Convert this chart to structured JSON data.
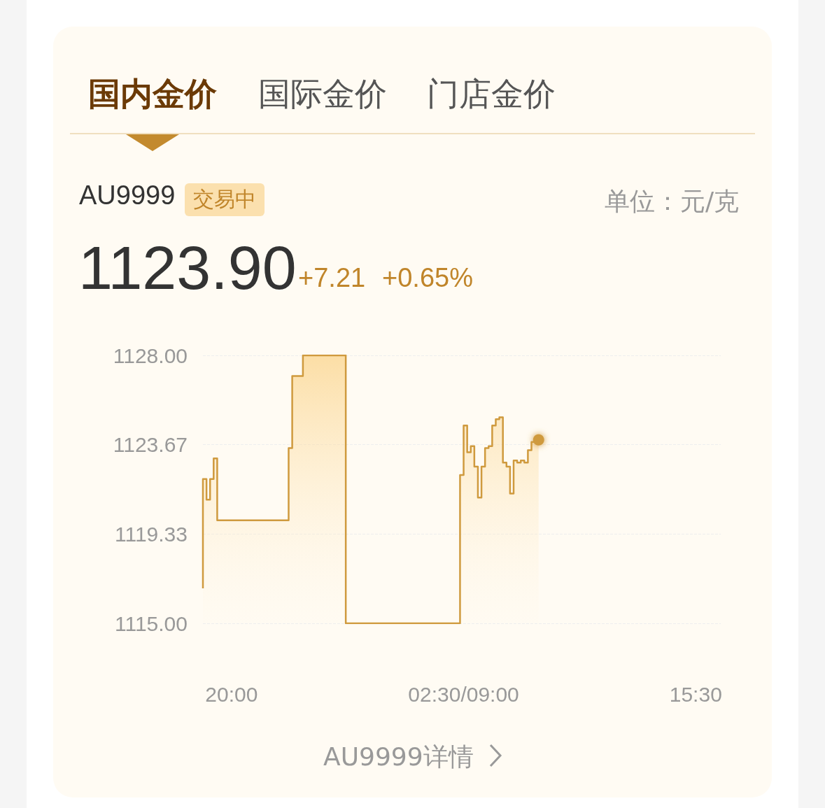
{
  "chart_data": {
    "type": "step",
    "title": "AU9999",
    "annotations": [
      "国内金价",
      "国际金价",
      "门店金价",
      "交易中",
      "1123.90",
      "+7.21",
      "+0.65%",
      "AU9999详情",
      "单位：元/克"
    ],
    "categories": [
      null,
      null,
      null,
      null,
      null,
      null,
      null,
      null,
      "20:00",
      null,
      null,
      null,
      null,
      null,
      null,
      null,
      null,
      null,
      null,
      null,
      null,
      null,
      null,
      null,
      null,
      null,
      null,
      null,
      null,
      null,
      null,
      null,
      null,
      null,
      null,
      null,
      null,
      null,
      null,
      null,
      null,
      null,
      null,
      null,
      null,
      null,
      null,
      null,
      null,
      null,
      null,
      null,
      null,
      null,
      null,
      null,
      null,
      null,
      null,
      null,
      null,
      null,
      null,
      null,
      null,
      null,
      null,
      null,
      null,
      null,
      null,
      null,
      null,
      "02:30/09:00",
      null,
      null,
      null,
      null,
      null,
      null,
      null,
      null,
      null,
      null,
      null,
      null,
      null,
      null,
      null,
      null,
      null,
      null,
      null,
      null,
      null,
      null,
      null,
      null,
      null,
      null,
      null,
      null,
      null,
      null,
      null,
      null,
      null,
      null,
      null,
      null,
      null,
      null,
      null,
      null,
      null,
      null,
      null,
      null,
      null,
      null,
      null,
      null,
      null,
      null,
      null,
      null,
      null,
      null,
      null,
      null,
      null,
      null,
      null,
      null,
      null,
      null,
      null,
      null,
      "15:30",
      null,
      null,
      null,
      null,
      null,
      null,
      null
    ],
    "values": [
      1116.7,
      1122.0,
      1121.0,
      1122.0,
      1123.0,
      1120.0,
      1120.0,
      1120.0,
      1120.0,
      1120.0,
      1120.0,
      1120.0,
      1120.0,
      1120.0,
      1120.0,
      1120.0,
      1120.0,
      1120.0,
      1120.0,
      1120.0,
      1120.0,
      1120.0,
      1120.0,
      1120.0,
      1120.0,
      1123.5,
      1127.0,
      1127.0,
      1127.0,
      1128.0,
      1128.0,
      1128.0,
      1128.0,
      1128.0,
      1128.0,
      1128.0,
      1128.0,
      1128.0,
      1128.0,
      1128.0,
      1128.0,
      1115.0,
      1115.0,
      1115.0,
      1115.0,
      1115.0,
      1115.0,
      1115.0,
      1115.0,
      1115.0,
      1115.0,
      1115.0,
      1115.0,
      1115.0,
      1115.0,
      1115.0,
      1115.0,
      1115.0,
      1115.0,
      1115.0,
      1115.0,
      1115.0,
      1115.0,
      1115.0,
      1115.0,
      1115.0,
      1115.0,
      1115.0,
      1115.0,
      1115.0,
      1115.0,
      1115.0,
      1115.0,
      1122.2,
      1124.6,
      1123.3,
      1123.6,
      1122.6,
      1121.1,
      1122.6,
      1123.5,
      1123.6,
      1124.6,
      1124.9,
      1125.0,
      1122.8,
      1122.6,
      1121.3,
      1122.9,
      1122.8,
      1122.9,
      1122.8,
      1123.4,
      1123.8,
      1123.9,
      null,
      null,
      null,
      null,
      null,
      null,
      null,
      null,
      null,
      null,
      null,
      null,
      null,
      null,
      null,
      null,
      null,
      null,
      null,
      null,
      null,
      null,
      null,
      null,
      null,
      null,
      null,
      null,
      null,
      null,
      null,
      null,
      null,
      null,
      null,
      null,
      null,
      null,
      null,
      null,
      null,
      null,
      null,
      null,
      null,
      null,
      null,
      null,
      null,
      null,
      null
    ],
    "color": "#cf9a3e",
    "ylim": [
      1115,
      1128
    ],
    "yticks": [
      {
        "value": 1115,
        "label": "1115.00"
      },
      {
        "value": 1119.33,
        "label": "1119.33"
      },
      {
        "value": 1123.67,
        "label": "1123.67"
      },
      {
        "value": 1128,
        "label": "1128.00"
      }
    ],
    "grid": "y",
    "marker": "none"
  }
}
